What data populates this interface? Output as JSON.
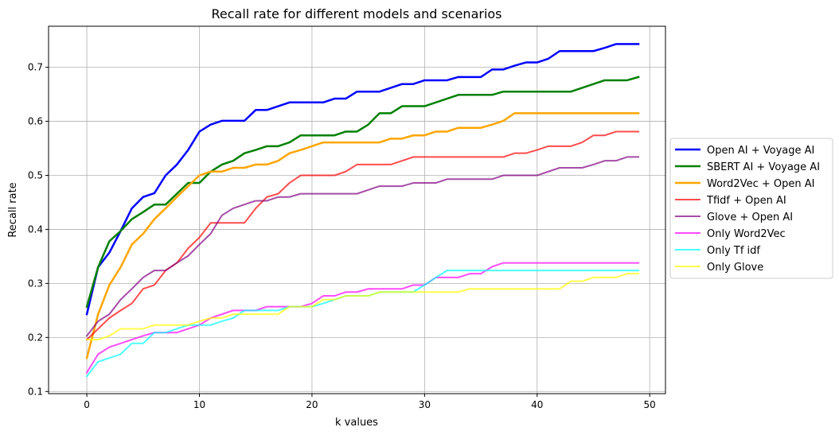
{
  "chart_data": {
    "type": "line",
    "title": "Recall rate for different models and scenarios",
    "xlabel": "k values",
    "ylabel": "Recall rate",
    "xlim": [
      -3.4,
      51.4
    ],
    "ylim": [
      0.096,
      0.776
    ],
    "xticks": [
      0,
      10,
      20,
      30,
      40,
      50
    ],
    "yticks": [
      0.1,
      0.2,
      0.3,
      0.4,
      0.5,
      0.6,
      0.7
    ],
    "xtick_labels": [
      "0",
      "10",
      "20",
      "30",
      "40",
      "50"
    ],
    "ytick_labels": [
      "0.1",
      "0.2",
      "0.3",
      "0.4",
      "0.5",
      "0.6",
      "0.7"
    ],
    "grid": true,
    "legend_position": "outside-right",
    "x": [
      0,
      1,
      2,
      3,
      4,
      5,
      6,
      7,
      8,
      9,
      10,
      11,
      12,
      13,
      14,
      15,
      16,
      17,
      18,
      19,
      20,
      21,
      22,
      23,
      24,
      25,
      26,
      27,
      28,
      29,
      30,
      31,
      32,
      33,
      34,
      35,
      36,
      37,
      38,
      39,
      40,
      41,
      42,
      43,
      44,
      45,
      46,
      47,
      48,
      49
    ],
    "series": [
      {
        "name": "Open AI + Voyage AI",
        "color": "#0000ff",
        "width": 2.5,
        "values": [
          0.243,
          0.33,
          0.357,
          0.397,
          0.439,
          0.46,
          0.467,
          0.5,
          0.52,
          0.547,
          0.581,
          0.594,
          0.601,
          0.601,
          0.601,
          0.621,
          0.621,
          0.628,
          0.635,
          0.635,
          0.635,
          0.635,
          0.642,
          0.642,
          0.655,
          0.655,
          0.655,
          0.662,
          0.669,
          0.669,
          0.676,
          0.676,
          0.676,
          0.682,
          0.682,
          0.682,
          0.696,
          0.696,
          0.703,
          0.709,
          0.709,
          0.716,
          0.73,
          0.73,
          0.73,
          0.73,
          0.736,
          0.743,
          0.743,
          0.743
        ]
      },
      {
        "name": "SBERT AI + Voyage AI",
        "color": "#008000",
        "width": 2.5,
        "values": [
          0.257,
          0.33,
          0.378,
          0.397,
          0.419,
          0.432,
          0.446,
          0.446,
          0.466,
          0.486,
          0.486,
          0.507,
          0.52,
          0.527,
          0.541,
          0.547,
          0.554,
          0.554,
          0.561,
          0.574,
          0.574,
          0.574,
          0.574,
          0.581,
          0.581,
          0.594,
          0.615,
          0.615,
          0.628,
          0.628,
          0.628,
          0.635,
          0.642,
          0.649,
          0.649,
          0.649,
          0.649,
          0.655,
          0.655,
          0.655,
          0.655,
          0.655,
          0.655,
          0.655,
          0.662,
          0.669,
          0.676,
          0.676,
          0.676,
          0.682
        ]
      },
      {
        "name": "Word2Vec + Open AI",
        "color": "#ffa500",
        "width": 2.5,
        "values": [
          0.162,
          0.243,
          0.297,
          0.33,
          0.372,
          0.392,
          0.419,
          0.439,
          0.46,
          0.48,
          0.5,
          0.507,
          0.507,
          0.514,
          0.514,
          0.52,
          0.52,
          0.527,
          0.541,
          0.547,
          0.554,
          0.561,
          0.561,
          0.561,
          0.561,
          0.561,
          0.561,
          0.568,
          0.568,
          0.574,
          0.574,
          0.581,
          0.581,
          0.588,
          0.588,
          0.588,
          0.594,
          0.601,
          0.615,
          0.615,
          0.615,
          0.615,
          0.615,
          0.615,
          0.615,
          0.615,
          0.615,
          0.615,
          0.615,
          0.615
        ]
      },
      {
        "name": "Tfidf + Open AI",
        "color": "#ff0000",
        "alpha": 0.7,
        "width": 2,
        "values": [
          0.196,
          0.216,
          0.236,
          0.25,
          0.263,
          0.29,
          0.297,
          0.324,
          0.338,
          0.365,
          0.385,
          0.412,
          0.412,
          0.412,
          0.412,
          0.439,
          0.46,
          0.466,
          0.486,
          0.5,
          0.5,
          0.5,
          0.5,
          0.507,
          0.52,
          0.52,
          0.52,
          0.52,
          0.527,
          0.534,
          0.534,
          0.534,
          0.534,
          0.534,
          0.534,
          0.534,
          0.534,
          0.534,
          0.541,
          0.541,
          0.547,
          0.554,
          0.554,
          0.554,
          0.561,
          0.574,
          0.574,
          0.581,
          0.581,
          0.581
        ]
      },
      {
        "name": "Glove + Open AI",
        "color": "#800080",
        "alpha": 0.7,
        "width": 2,
        "values": [
          0.203,
          0.23,
          0.243,
          0.27,
          0.29,
          0.311,
          0.324,
          0.324,
          0.338,
          0.351,
          0.372,
          0.392,
          0.426,
          0.439,
          0.446,
          0.453,
          0.453,
          0.46,
          0.46,
          0.466,
          0.466,
          0.466,
          0.466,
          0.466,
          0.466,
          0.473,
          0.48,
          0.48,
          0.48,
          0.486,
          0.486,
          0.486,
          0.493,
          0.493,
          0.493,
          0.493,
          0.493,
          0.5,
          0.5,
          0.5,
          0.5,
          0.507,
          0.514,
          0.514,
          0.514,
          0.52,
          0.527,
          0.527,
          0.534,
          0.534
        ]
      },
      {
        "name": "Only Word2Vec",
        "color": "#ff00ff",
        "alpha": 0.7,
        "width": 2,
        "values": [
          0.135,
          0.169,
          0.182,
          0.189,
          0.196,
          0.203,
          0.209,
          0.209,
          0.209,
          0.216,
          0.223,
          0.236,
          0.243,
          0.25,
          0.25,
          0.25,
          0.257,
          0.257,
          0.257,
          0.257,
          0.263,
          0.277,
          0.277,
          0.284,
          0.284,
          0.29,
          0.29,
          0.29,
          0.29,
          0.297,
          0.297,
          0.311,
          0.311,
          0.311,
          0.318,
          0.318,
          0.331,
          0.338,
          0.338,
          0.338,
          0.338,
          0.338,
          0.338,
          0.338,
          0.338,
          0.338,
          0.338,
          0.338,
          0.338,
          0.338
        ]
      },
      {
        "name": "Only Tf idf",
        "color": "#00ffff",
        "alpha": 0.7,
        "width": 2,
        "values": [
          0.128,
          0.155,
          0.162,
          0.169,
          0.189,
          0.189,
          0.209,
          0.209,
          0.216,
          0.223,
          0.223,
          0.223,
          0.23,
          0.236,
          0.25,
          0.25,
          0.25,
          0.25,
          0.257,
          0.257,
          0.257,
          0.263,
          0.27,
          0.277,
          0.277,
          0.277,
          0.284,
          0.284,
          0.284,
          0.284,
          0.297,
          0.311,
          0.324,
          0.324,
          0.324,
          0.324,
          0.324,
          0.324,
          0.324,
          0.324,
          0.324,
          0.324,
          0.324,
          0.324,
          0.324,
          0.324,
          0.324,
          0.324,
          0.324,
          0.324
        ]
      },
      {
        "name": "Only Glove",
        "color": "#ffff00",
        "alpha": 0.7,
        "width": 2,
        "values": [
          0.196,
          0.196,
          0.203,
          0.216,
          0.216,
          0.216,
          0.223,
          0.223,
          0.223,
          0.223,
          0.23,
          0.236,
          0.236,
          0.243,
          0.243,
          0.243,
          0.243,
          0.243,
          0.257,
          0.257,
          0.257,
          0.27,
          0.27,
          0.277,
          0.277,
          0.277,
          0.284,
          0.284,
          0.284,
          0.284,
          0.284,
          0.284,
          0.284,
          0.284,
          0.29,
          0.29,
          0.29,
          0.29,
          0.29,
          0.29,
          0.29,
          0.29,
          0.29,
          0.304,
          0.304,
          0.311,
          0.311,
          0.311,
          0.318,
          0.318
        ]
      }
    ]
  }
}
